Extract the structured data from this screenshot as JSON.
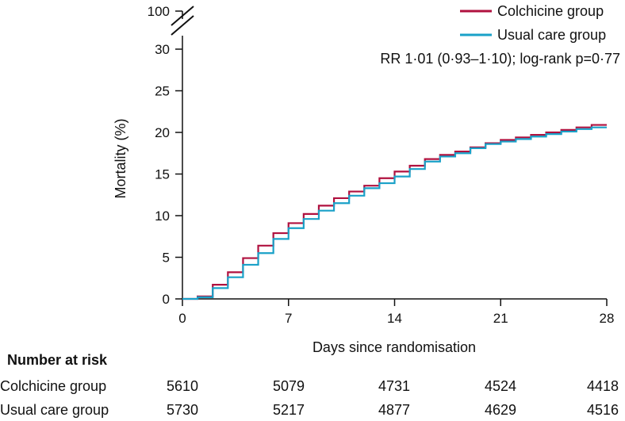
{
  "chart_data": {
    "type": "line",
    "title": "",
    "xlabel": "Days since randomisation",
    "ylabel": "Mortality (%)",
    "xlim": [
      0,
      28
    ],
    "ylim": [
      0,
      30
    ],
    "x_ticks": [
      "0",
      "7",
      "14",
      "21",
      "28"
    ],
    "y_ticks": [
      "0",
      "5",
      "10",
      "15",
      "20",
      "25",
      "30"
    ],
    "y_break_label": "100",
    "grid": false,
    "legend_position": "top-right",
    "annotation": "RR 1·01 (0·93–1·10); log-rank p=0·77",
    "series": [
      {
        "name": "Colchicine group",
        "color": "#b0113f",
        "step": true,
        "x": [
          0,
          1,
          2,
          3,
          4,
          5,
          6,
          7,
          8,
          9,
          10,
          11,
          12,
          13,
          14,
          15,
          16,
          17,
          18,
          19,
          20,
          21,
          22,
          23,
          24,
          25,
          26,
          27,
          28
        ],
        "y": [
          0,
          0.3,
          1.7,
          3.2,
          4.9,
          6.4,
          7.9,
          9.1,
          10.2,
          11.2,
          12.1,
          12.9,
          13.6,
          14.5,
          15.3,
          16.0,
          16.8,
          17.3,
          17.7,
          18.2,
          18.7,
          19.1,
          19.4,
          19.7,
          20.0,
          20.3,
          20.6,
          20.9,
          20.9
        ]
      },
      {
        "name": "Usual care group",
        "color": "#1aa1c8",
        "step": true,
        "x": [
          0,
          1,
          2,
          3,
          4,
          5,
          6,
          7,
          8,
          9,
          10,
          11,
          12,
          13,
          14,
          15,
          16,
          17,
          18,
          19,
          20,
          21,
          22,
          23,
          24,
          25,
          26,
          27,
          28
        ],
        "y": [
          0,
          0.2,
          1.3,
          2.6,
          4.1,
          5.5,
          7.2,
          8.5,
          9.6,
          10.6,
          11.5,
          12.4,
          13.3,
          13.9,
          14.7,
          15.6,
          16.5,
          17.1,
          17.5,
          18.1,
          18.6,
          18.9,
          19.2,
          19.5,
          19.8,
          20.1,
          20.4,
          20.6,
          20.6
        ]
      }
    ]
  },
  "risk_table": {
    "heading": "Number at risk",
    "rows": [
      {
        "label": "Colchicine group",
        "values": [
          "5610",
          "5079",
          "4731",
          "4524",
          "4418"
        ]
      },
      {
        "label": "Usual care group",
        "values": [
          "5730",
          "5217",
          "4877",
          "4629",
          "4516"
        ]
      }
    ]
  }
}
